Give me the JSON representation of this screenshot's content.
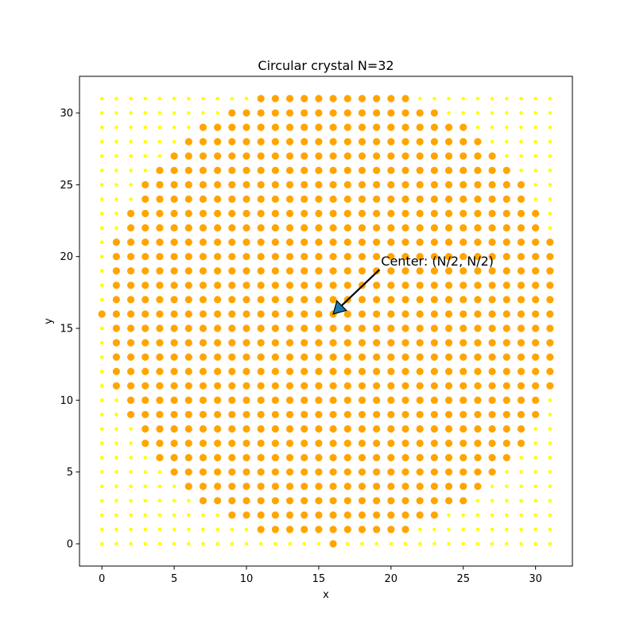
{
  "chart_data": {
    "type": "scatter",
    "title": "Circular crystal N=32",
    "xlabel": "x",
    "ylabel": "y",
    "N": 32,
    "xlim": [
      -1.55,
      32.55
    ],
    "ylim": [
      -1.55,
      32.55
    ],
    "xticks": [
      0,
      5,
      10,
      15,
      20,
      25,
      30
    ],
    "yticks": [
      0,
      5,
      10,
      15,
      20,
      25,
      30
    ],
    "grid": false,
    "legend": "none",
    "series": [
      {
        "role": "inside",
        "color": "#FFA500",
        "note": "lattice points with (x-16)^2 + (y-16)^2 <= 16^2",
        "rows": [
          {
            "y": 0,
            "x_min": 16,
            "x_max": 16
          },
          {
            "y": 1,
            "x_min": 11,
            "x_max": 21
          },
          {
            "y": 2,
            "x_min": 9,
            "x_max": 23
          },
          {
            "y": 3,
            "x_min": 7,
            "x_max": 25
          },
          {
            "y": 4,
            "x_min": 6,
            "x_max": 26
          },
          {
            "y": 5,
            "x_min": 5,
            "x_max": 27
          },
          {
            "y": 6,
            "x_min": 4,
            "x_max": 28
          },
          {
            "y": 7,
            "x_min": 3,
            "x_max": 29
          },
          {
            "y": 8,
            "x_min": 3,
            "x_max": 29
          },
          {
            "y": 9,
            "x_min": 2,
            "x_max": 30
          },
          {
            "y": 10,
            "x_min": 2,
            "x_max": 30
          },
          {
            "y": 11,
            "x_min": 1,
            "x_max": 31
          },
          {
            "y": 12,
            "x_min": 1,
            "x_max": 31
          },
          {
            "y": 13,
            "x_min": 1,
            "x_max": 31
          },
          {
            "y": 14,
            "x_min": 1,
            "x_max": 31
          },
          {
            "y": 15,
            "x_min": 1,
            "x_max": 31
          },
          {
            "y": 16,
            "x_min": 0,
            "x_max": 31
          },
          {
            "y": 17,
            "x_min": 1,
            "x_max": 31
          },
          {
            "y": 18,
            "x_min": 1,
            "x_max": 31
          },
          {
            "y": 19,
            "x_min": 1,
            "x_max": 31
          },
          {
            "y": 20,
            "x_min": 1,
            "x_max": 31
          },
          {
            "y": 21,
            "x_min": 1,
            "x_max": 31
          },
          {
            "y": 22,
            "x_min": 2,
            "x_max": 30
          },
          {
            "y": 23,
            "x_min": 2,
            "x_max": 30
          },
          {
            "y": 24,
            "x_min": 3,
            "x_max": 29
          },
          {
            "y": 25,
            "x_min": 3,
            "x_max": 29
          },
          {
            "y": 26,
            "x_min": 4,
            "x_max": 28
          },
          {
            "y": 27,
            "x_min": 5,
            "x_max": 27
          },
          {
            "y": 28,
            "x_min": 6,
            "x_max": 26
          },
          {
            "y": 29,
            "x_min": 7,
            "x_max": 25
          },
          {
            "y": 30,
            "x_min": 9,
            "x_max": 23
          },
          {
            "y": 31,
            "x_min": 11,
            "x_max": 21
          }
        ]
      },
      {
        "role": "outside",
        "color": "#FFFF00",
        "note": "all remaining lattice points 0..31 x 0..31"
      }
    ],
    "annotation": {
      "text": "Center: (N/2, N/2)",
      "xy": [
        16,
        16
      ],
      "xytext": [
        19.2,
        19.2
      ],
      "arrow_color": "#1f77b4"
    }
  }
}
